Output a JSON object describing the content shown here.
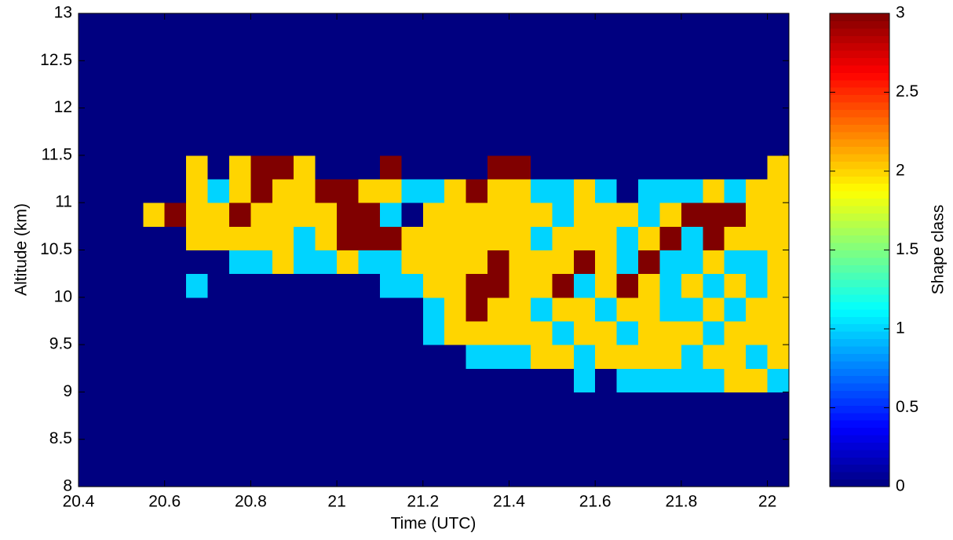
{
  "chart_data": {
    "type": "heatmap",
    "xlabel": "Time (UTC)",
    "ylabel": "Altitude (km)",
    "colorbar_label": "Shape class",
    "colormap": "jet",
    "x": [
      20.425,
      20.475,
      20.525,
      20.575,
      20.625,
      20.675,
      20.725,
      20.775,
      20.825,
      20.875,
      20.925,
      20.975,
      21.025,
      21.075,
      21.125,
      21.175,
      21.225,
      21.275,
      21.325,
      21.375,
      21.425,
      21.475,
      21.525,
      21.575,
      21.625,
      21.675,
      21.725,
      21.775,
      21.825,
      21.875,
      21.925,
      21.975,
      22.025
    ],
    "y": [
      8.125,
      8.375,
      8.625,
      8.875,
      9.125,
      9.375,
      9.625,
      9.875,
      10.125,
      10.375,
      10.625,
      10.875,
      11.125,
      11.375,
      11.625,
      11.875,
      12.125,
      12.375,
      12.625,
      12.875
    ],
    "z": [
      [
        0,
        0,
        0,
        0,
        0,
        0,
        0,
        0,
        0,
        0,
        0,
        0,
        0,
        0,
        0,
        0,
        0,
        0,
        0,
        0,
        0,
        0,
        0,
        0,
        0,
        0,
        0,
        0,
        0,
        0,
        0,
        0,
        0
      ],
      [
        0,
        0,
        0,
        0,
        0,
        0,
        0,
        0,
        0,
        0,
        0,
        0,
        0,
        0,
        0,
        0,
        0,
        0,
        0,
        0,
        0,
        0,
        0,
        0,
        0,
        0,
        0,
        0,
        0,
        0,
        0,
        0,
        0
      ],
      [
        0,
        0,
        0,
        0,
        0,
        0,
        0,
        0,
        0,
        0,
        0,
        0,
        0,
        0,
        0,
        0,
        0,
        0,
        0,
        0,
        0,
        0,
        0,
        0,
        0,
        0,
        0,
        0,
        0,
        0,
        0,
        0,
        0
      ],
      [
        0,
        0,
        0,
        0,
        0,
        0,
        0,
        0,
        0,
        0,
        0,
        0,
        0,
        0,
        0,
        0,
        0,
        0,
        0,
        0,
        0,
        0,
        0,
        0,
        0,
        0,
        0,
        0,
        0,
        0,
        0,
        0,
        0
      ],
      [
        0,
        0,
        0,
        0,
        0,
        0,
        0,
        0,
        0,
        0,
        0,
        0,
        0,
        0,
        0,
        0,
        0,
        0,
        0,
        0,
        0,
        0,
        0,
        1,
        0,
        1,
        1,
        1,
        1,
        1,
        2,
        2,
        1
      ],
      [
        0,
        0,
        0,
        0,
        0,
        0,
        0,
        0,
        0,
        0,
        0,
        0,
        0,
        0,
        0,
        0,
        0,
        0,
        1,
        1,
        1,
        2,
        2,
        1,
        2,
        2,
        2,
        2,
        1,
        2,
        2,
        1,
        2
      ],
      [
        0,
        0,
        0,
        0,
        0,
        0,
        0,
        0,
        0,
        0,
        0,
        0,
        0,
        0,
        0,
        0,
        1,
        2,
        2,
        2,
        2,
        2,
        1,
        2,
        2,
        1,
        2,
        2,
        2,
        1,
        2,
        2,
        2
      ],
      [
        0,
        0,
        0,
        0,
        0,
        0,
        0,
        0,
        0,
        0,
        0,
        0,
        0,
        0,
        0,
        0,
        1,
        2,
        3,
        2,
        2,
        1,
        2,
        2,
        1,
        2,
        2,
        1,
        1,
        2,
        1,
        2,
        2
      ],
      [
        0,
        0,
        0,
        0,
        0,
        1,
        0,
        0,
        0,
        0,
        0,
        0,
        0,
        0,
        1,
        1,
        2,
        2,
        3,
        3,
        2,
        2,
        3,
        1,
        2,
        3,
        2,
        1,
        2,
        1,
        2,
        1,
        2
      ],
      [
        0,
        0,
        0,
        0,
        0,
        0,
        0,
        1,
        1,
        2,
        1,
        1,
        2,
        1,
        1,
        2,
        2,
        2,
        2,
        3,
        2,
        2,
        2,
        3,
        2,
        1,
        3,
        1,
        1,
        2,
        1,
        1,
        2
      ],
      [
        0,
        0,
        0,
        0,
        0,
        2,
        2,
        2,
        2,
        2,
        1,
        2,
        3,
        3,
        3,
        2,
        2,
        2,
        2,
        2,
        2,
        1,
        2,
        2,
        2,
        1,
        2,
        3,
        1,
        3,
        2,
        2,
        2
      ],
      [
        0,
        0,
        0,
        2,
        3,
        2,
        2,
        3,
        2,
        2,
        2,
        2,
        3,
        3,
        1,
        0,
        2,
        2,
        2,
        2,
        2,
        2,
        1,
        2,
        2,
        2,
        1,
        2,
        3,
        3,
        3,
        2,
        2
      ],
      [
        0,
        0,
        0,
        0,
        0,
        2,
        1,
        2,
        3,
        2,
        2,
        3,
        3,
        2,
        2,
        1,
        1,
        2,
        3,
        2,
        2,
        1,
        1,
        2,
        1,
        0,
        1,
        1,
        1,
        2,
        1,
        2,
        2
      ],
      [
        0,
        0,
        0,
        0,
        0,
        2,
        0,
        2,
        3,
        3,
        2,
        0,
        0,
        0,
        3,
        0,
        0,
        0,
        0,
        3,
        3,
        0,
        0,
        0,
        0,
        0,
        0,
        0,
        0,
        0,
        0,
        0,
        2
      ],
      [
        0,
        0,
        0,
        0,
        0,
        0,
        0,
        0,
        0,
        0,
        0,
        0,
        0,
        0,
        0,
        0,
        0,
        0,
        0,
        0,
        0,
        0,
        0,
        0,
        0,
        0,
        0,
        0,
        0,
        0,
        0,
        0,
        0
      ],
      [
        0,
        0,
        0,
        0,
        0,
        0,
        0,
        0,
        0,
        0,
        0,
        0,
        0,
        0,
        0,
        0,
        0,
        0,
        0,
        0,
        0,
        0,
        0,
        0,
        0,
        0,
        0,
        0,
        0,
        0,
        0,
        0,
        0
      ],
      [
        0,
        0,
        0,
        0,
        0,
        0,
        0,
        0,
        0,
        0,
        0,
        0,
        0,
        0,
        0,
        0,
        0,
        0,
        0,
        0,
        0,
        0,
        0,
        0,
        0,
        0,
        0,
        0,
        0,
        0,
        0,
        0,
        0
      ],
      [
        0,
        0,
        0,
        0,
        0,
        0,
        0,
        0,
        0,
        0,
        0,
        0,
        0,
        0,
        0,
        0,
        0,
        0,
        0,
        0,
        0,
        0,
        0,
        0,
        0,
        0,
        0,
        0,
        0,
        0,
        0,
        0,
        0
      ],
      [
        0,
        0,
        0,
        0,
        0,
        0,
        0,
        0,
        0,
        0,
        0,
        0,
        0,
        0,
        0,
        0,
        0,
        0,
        0,
        0,
        0,
        0,
        0,
        0,
        0,
        0,
        0,
        0,
        0,
        0,
        0,
        0,
        0
      ],
      [
        0,
        0,
        0,
        0,
        0,
        0,
        0,
        0,
        0,
        0,
        0,
        0,
        0,
        0,
        0,
        0,
        0,
        0,
        0,
        0,
        0,
        0,
        0,
        0,
        0,
        0,
        0,
        0,
        0,
        0,
        0,
        0,
        0
      ]
    ],
    "xlim": [
      20.4,
      22.05
    ],
    "xticks": [
      20.4,
      20.6,
      20.8,
      21,
      21.2,
      21.4,
      21.6,
      21.8,
      22
    ],
    "ylim": [
      8,
      13
    ],
    "yticks": [
      8,
      8.5,
      9,
      9.5,
      10,
      10.5,
      11,
      11.5,
      12,
      12.5,
      13
    ],
    "clim": [
      0,
      3
    ],
    "cticks": [
      0,
      0.5,
      1,
      1.5,
      2,
      2.5,
      3
    ]
  }
}
